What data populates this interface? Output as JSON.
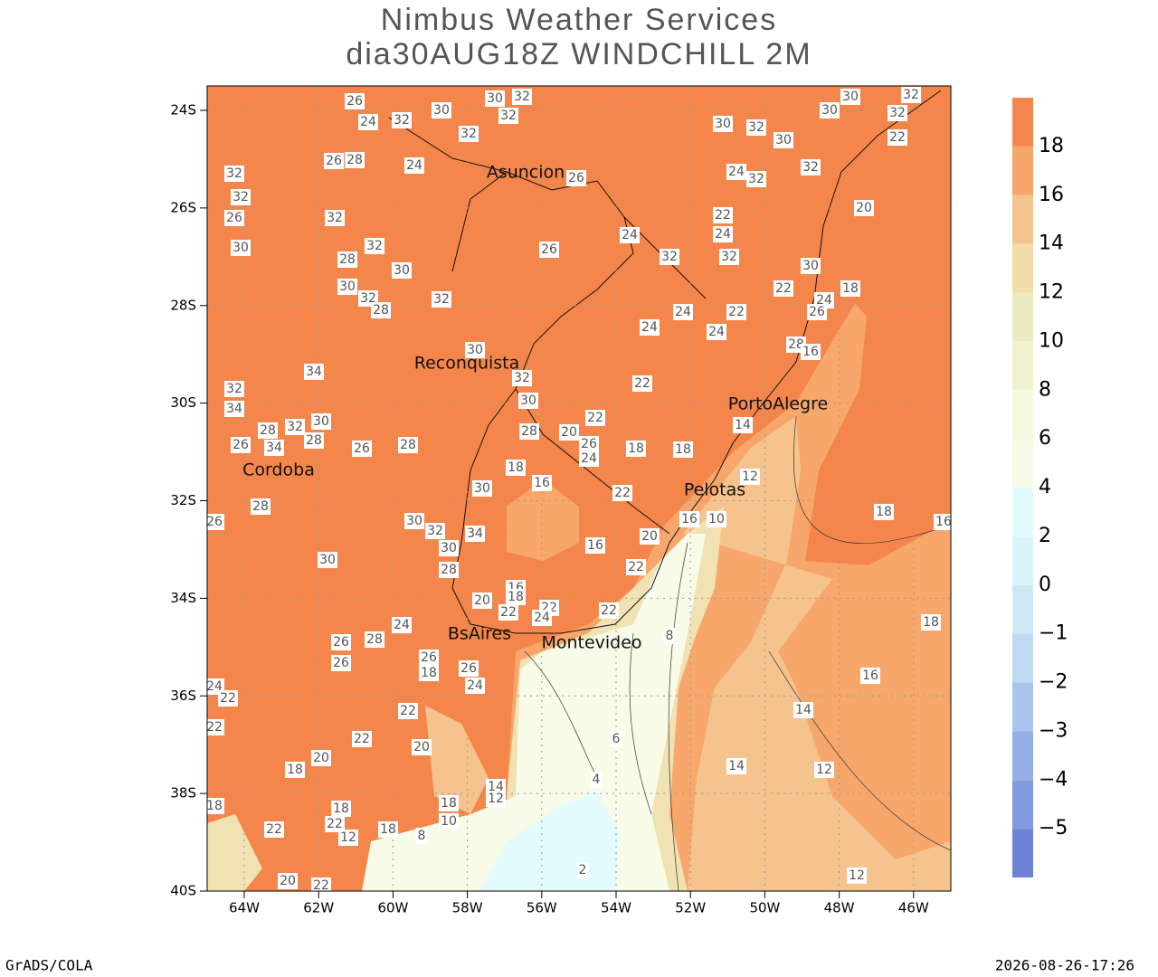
{
  "header": {
    "title_lines": [
      "Nimbus Weather Services",
      "dia30AUG18Z WINDCHILL 2M"
    ]
  },
  "axes": {
    "lat_labels": [
      "24S",
      "26S",
      "28S",
      "30S",
      "32S",
      "34S",
      "36S",
      "38S",
      "40S"
    ],
    "lon_labels": [
      "64W",
      "62W",
      "60W",
      "58W",
      "56W",
      "54W",
      "52W",
      "50W",
      "48W",
      "46W"
    ]
  },
  "colorbar": {
    "levels": [
      {
        "value": -5,
        "label": "−5"
      },
      {
        "value": -4,
        "label": "−4"
      },
      {
        "value": -3,
        "label": "−3"
      },
      {
        "value": -2,
        "label": "−2"
      },
      {
        "value": -1,
        "label": "−1"
      },
      0,
      2,
      4,
      6,
      8,
      10,
      12,
      14,
      16,
      18
    ],
    "colors": [
      "#6b82d7",
      "#8099df",
      "#95afe6",
      "#aac5ed",
      "#bfd9f2",
      "#cfe8f5",
      "#d9f4f9",
      "#e3fbfd",
      "#f8fbe8",
      "#f6f8df",
      "#f1f3d0",
      "#eeeac0",
      "#f2dcaa",
      "#f5c48e",
      "#f7a76b",
      "#f5864b"
    ]
  },
  "cities": [
    "Asuncion",
    "Reconquista",
    "PortoAlegre",
    "Cordoba",
    "Pelotas",
    "BsAires",
    "Montevideo"
  ],
  "contour_labels": [
    26,
    24,
    32,
    30,
    30,
    32,
    32,
    32,
    26,
    28,
    24,
    32,
    32,
    26,
    30,
    32,
    32,
    28,
    30,
    30,
    32,
    28,
    32,
    26,
    26,
    24,
    32,
    32,
    30,
    32,
    30,
    30,
    30,
    32,
    32,
    22,
    32,
    32,
    24,
    22,
    24,
    20,
    30,
    22,
    18,
    24,
    26,
    22,
    24,
    24,
    24,
    28,
    16,
    30,
    34,
    32,
    34,
    32,
    30,
    22,
    28,
    32,
    30,
    28,
    34,
    26,
    26,
    28,
    28,
    20,
    22,
    26,
    24,
    18,
    18,
    18,
    14,
    12,
    16,
    30,
    22,
    28,
    26,
    30,
    32,
    30,
    34,
    16,
    10,
    18,
    16,
    16,
    20,
    30,
    28,
    22,
    16,
    18,
    20,
    22,
    22,
    24,
    22,
    24,
    18,
    28,
    26,
    26,
    26,
    18,
    26,
    24,
    8,
    16,
    24,
    22,
    22,
    14,
    22,
    22,
    20,
    20,
    18,
    6,
    14,
    12,
    14,
    12,
    4,
    18,
    18,
    18,
    10,
    22,
    22,
    12,
    18,
    8,
    2,
    12,
    20,
    22
  ],
  "footer": {
    "left": "GrADS/COLA",
    "right": "2026-08-26-17:26"
  }
}
